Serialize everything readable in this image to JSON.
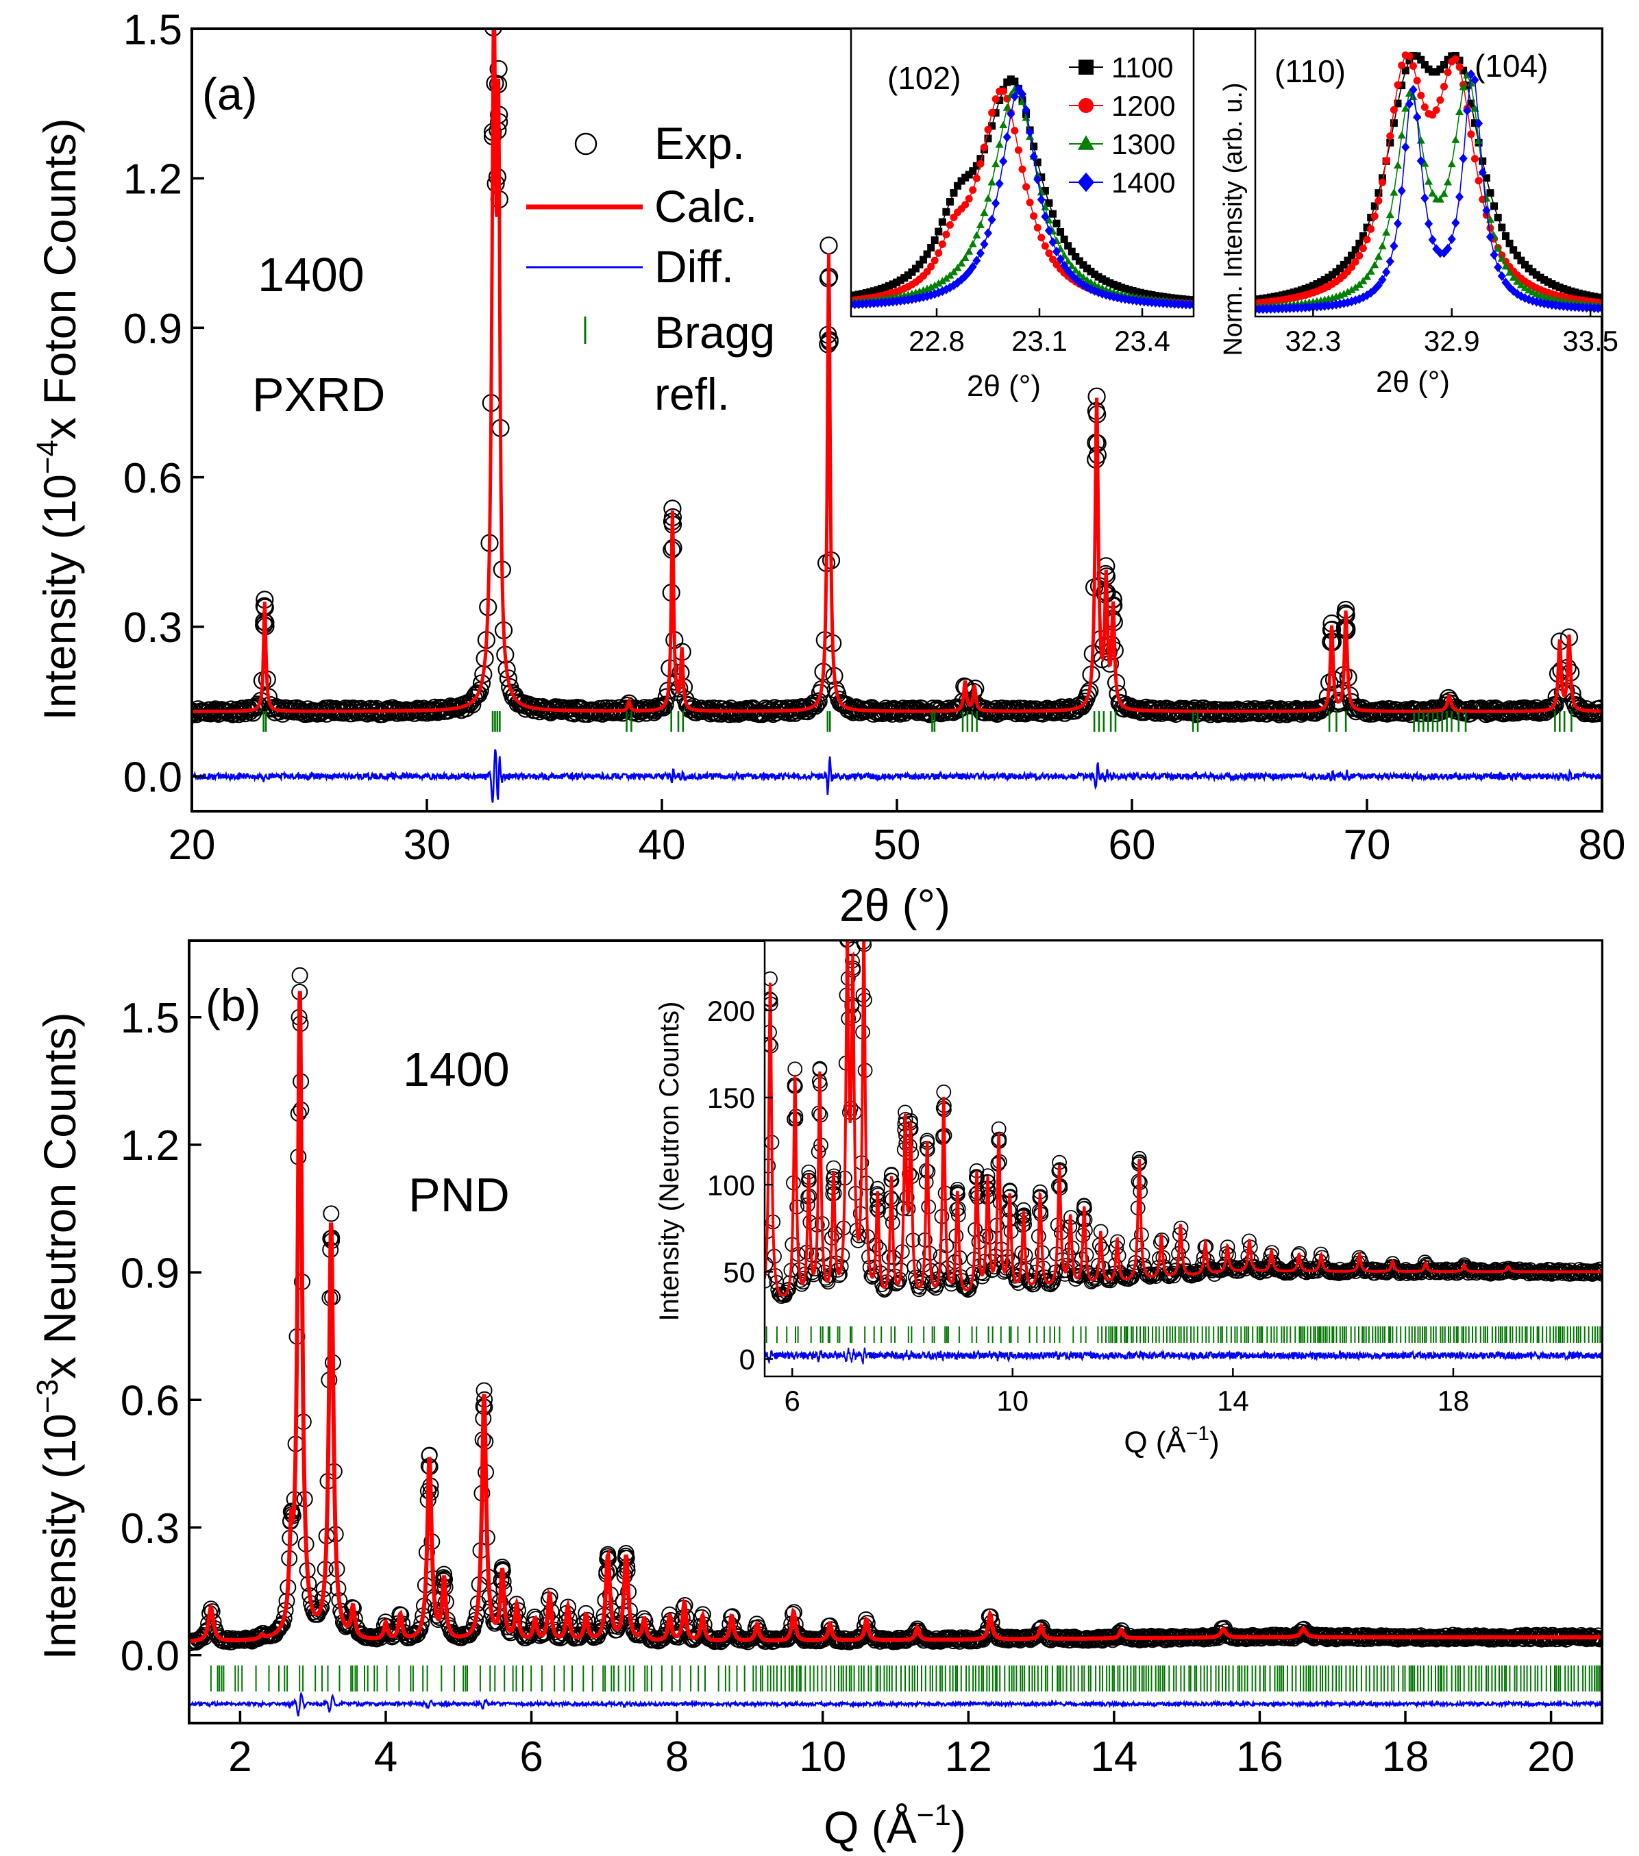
{
  "chart_data": [
    {
      "id": "a",
      "type": "scatter",
      "panel_label": "(a)",
      "sample_label": "1400",
      "method_label": "PXRD",
      "xlabel": "2θ (°)",
      "ylabel_parts": [
        "Intensity (10",
        "−4",
        "x Foton Counts)"
      ],
      "xlim": [
        20,
        80
      ],
      "ylim": [
        -0.07,
        1.5
      ],
      "xticks": [
        20,
        30,
        40,
        50,
        60,
        70,
        80
      ],
      "xtick_labels": [
        "20",
        "30",
        "40",
        "50",
        "60",
        "70",
        "80"
      ],
      "yticks": [
        0.0,
        0.3,
        0.6,
        0.9,
        1.2,
        1.5
      ],
      "ytick_labels": [
        "0.0",
        "0.3",
        "0.6",
        "0.9",
        "1.2",
        "1.5"
      ],
      "background": 0.13,
      "peaks": [
        [
          23.1,
          0.22,
          0.06
        ],
        [
          32.85,
          1.35,
          0.1
        ],
        [
          33.05,
          1.0,
          0.07
        ],
        [
          38.6,
          0.02,
          0.06
        ],
        [
          40.45,
          0.4,
          0.06
        ],
        [
          40.85,
          0.12,
          0.06
        ],
        [
          47.1,
          0.92,
          0.07
        ],
        [
          52.9,
          0.06,
          0.07
        ],
        [
          53.3,
          0.05,
          0.07
        ],
        [
          58.5,
          0.62,
          0.08
        ],
        [
          58.9,
          0.25,
          0.07
        ],
        [
          59.2,
          0.2,
          0.07
        ],
        [
          68.5,
          0.17,
          0.07
        ],
        [
          69.1,
          0.2,
          0.07
        ],
        [
          73.5,
          0.03,
          0.1
        ],
        [
          78.2,
          0.14,
          0.07
        ],
        [
          78.6,
          0.15,
          0.07
        ]
      ],
      "bragg_positions": [
        23.05,
        23.15,
        32.8,
        32.9,
        33.0,
        33.1,
        38.5,
        38.7,
        40.4,
        40.7,
        40.9,
        47.05,
        47.15,
        51.5,
        51.6,
        52.8,
        53.0,
        53.2,
        53.4,
        58.4,
        58.6,
        58.8,
        59.1,
        59.3,
        62.6,
        62.8,
        68.4,
        68.7,
        69.1,
        72.0,
        72.2,
        72.4,
        72.6,
        72.8,
        73.0,
        73.2,
        73.4,
        73.6,
        73.9,
        74.2,
        78.0,
        78.2,
        78.4,
        78.7
      ],
      "bragg_y": 0.11,
      "diff_offset": 0.0,
      "legend": [
        {
          "label": "Exp.",
          "marker": "open-circle",
          "color": "#000000"
        },
        {
          "label": "Calc.",
          "marker": "line",
          "color": "#ff0000"
        },
        {
          "label": "Diff.",
          "marker": "line",
          "color": "#0000ff"
        },
        {
          "label": "Bragg",
          "label2": "refl.",
          "marker": "tick",
          "color": "#007700"
        }
      ],
      "colors": {
        "exp": "#000000",
        "calc": "#ff0000",
        "diff": "#0000ff",
        "bragg": "#007700"
      }
    },
    {
      "id": "a_inset_102",
      "type": "line",
      "annotation": "(102)",
      "xlabel": "2θ (°)",
      "xlim": [
        22.55,
        23.55
      ],
      "ylim": [
        0,
        1.05
      ],
      "xticks": [
        22.8,
        23.1,
        23.4
      ],
      "xtick_labels": [
        "22.8",
        "23.1",
        "23.4"
      ],
      "series": [
        {
          "name": "1100",
          "marker": "square",
          "color": "#000000",
          "peaks": [
            [
              23.02,
              0.8,
              0.1
            ],
            [
              22.86,
              0.22,
              0.07
            ]
          ],
          "base": 0.03
        },
        {
          "name": "1200",
          "marker": "circle",
          "color": "#ff0000",
          "peaks": [
            [
              22.99,
              0.78,
              0.08
            ],
            [
              22.85,
              0.14,
              0.05
            ]
          ],
          "base": 0.03
        },
        {
          "name": "1300",
          "marker": "triangle",
          "color": "#008000",
          "peaks": [
            [
              23.03,
              0.8,
              0.08
            ]
          ],
          "base": 0.03
        },
        {
          "name": "1400",
          "marker": "diamond",
          "color": "#0000ff",
          "peaks": [
            [
              23.04,
              0.8,
              0.065
            ]
          ],
          "base": 0.03
        }
      ]
    },
    {
      "id": "a_inset_110_104",
      "type": "line",
      "annotations": [
        "(110)",
        "(104)"
      ],
      "xlabel": "2θ (°)",
      "ylabel": "Norm. Intensity (arb. u.)",
      "xlim": [
        32.05,
        33.55
      ],
      "ylim": [
        0,
        1.05
      ],
      "xticks": [
        32.3,
        32.9,
        33.5
      ],
      "xtick_labels": [
        "32.3",
        "32.9",
        "33.5"
      ],
      "series": [
        {
          "name": "1100",
          "marker": "square",
          "color": "#000000",
          "peaks": [
            [
              32.72,
              0.72,
              0.13
            ],
            [
              32.93,
              0.72,
              0.13
            ]
          ],
          "base": 0.02
        },
        {
          "name": "1200",
          "marker": "circle",
          "color": "#ff0000",
          "peaks": [
            [
              32.7,
              0.8,
              0.1
            ],
            [
              32.92,
              0.78,
              0.1
            ]
          ],
          "base": 0.02
        },
        {
          "name": "1300",
          "marker": "triangle",
          "color": "#008000",
          "peaks": [
            [
              32.72,
              0.73,
              0.075
            ],
            [
              32.97,
              0.8,
              0.075
            ]
          ],
          "base": 0.02
        },
        {
          "name": "1400",
          "marker": "diamond",
          "color": "#0000ff",
          "peaks": [
            [
              32.73,
              0.78,
              0.05
            ],
            [
              32.99,
              0.85,
              0.05
            ]
          ],
          "base": 0.02
        }
      ]
    },
    {
      "id": "b",
      "type": "scatter",
      "panel_label": "(b)",
      "sample_label": "1400",
      "method_label": "PND",
      "xlabel_parts": [
        "Q (Å",
        "−1",
        ")"
      ],
      "ylabel_parts": [
        "Intensity (10",
        "−3",
        "x Neutron Counts)"
      ],
      "xlim": [
        1.3,
        20.7
      ],
      "ylim": [
        -0.16,
        1.68
      ],
      "xticks": [
        2,
        4,
        6,
        8,
        10,
        12,
        14,
        16,
        18,
        20
      ],
      "xtick_labels": [
        "2",
        "4",
        "6",
        "8",
        "10",
        "12",
        "14",
        "16",
        "18",
        "20"
      ],
      "yticks": [
        0.0,
        0.3,
        0.6,
        0.9,
        1.2,
        1.5
      ],
      "ytick_labels": [
        "0.0",
        "0.3",
        "0.6",
        "0.9",
        "1.2",
        "1.5"
      ],
      "background": 0.03,
      "peaks": [
        [
          1.6,
          0.08,
          0.04
        ],
        [
          2.3,
          0.01,
          0.03
        ],
        [
          2.7,
          0.18,
          0.03
        ],
        [
          2.82,
          1.52,
          0.035
        ],
        [
          3.25,
          0.98,
          0.035
        ],
        [
          3.55,
          0.07,
          0.03
        ],
        [
          4.0,
          0.04,
          0.03
        ],
        [
          4.2,
          0.06,
          0.03
        ],
        [
          4.6,
          0.43,
          0.035
        ],
        [
          4.8,
          0.14,
          0.03
        ],
        [
          5.35,
          0.58,
          0.035
        ],
        [
          5.6,
          0.16,
          0.03
        ],
        [
          5.8,
          0.08,
          0.03
        ],
        [
          6.05,
          0.05,
          0.03
        ],
        [
          6.25,
          0.11,
          0.03
        ],
        [
          6.5,
          0.08,
          0.03
        ],
        [
          6.75,
          0.06,
          0.03
        ],
        [
          7.05,
          0.2,
          0.035
        ],
        [
          7.3,
          0.2,
          0.035
        ],
        [
          7.55,
          0.05,
          0.03
        ],
        [
          7.9,
          0.06,
          0.03
        ],
        [
          8.1,
          0.09,
          0.03
        ],
        [
          8.35,
          0.06,
          0.03
        ],
        [
          8.75,
          0.06,
          0.03
        ],
        [
          9.1,
          0.04,
          0.03
        ],
        [
          9.6,
          0.07,
          0.03
        ],
        [
          10.1,
          0.04,
          0.03
        ],
        [
          10.6,
          0.05,
          0.03
        ],
        [
          11.3,
          0.03,
          0.03
        ],
        [
          12.3,
          0.06,
          0.03
        ],
        [
          13.0,
          0.03,
          0.03
        ],
        [
          14.1,
          0.02,
          0.03
        ],
        [
          15.5,
          0.02,
          0.04
        ],
        [
          16.6,
          0.02,
          0.04
        ]
      ],
      "bragg_y": -0.055,
      "diff_offset": -0.115,
      "colors": {
        "exp": "#000000",
        "calc": "#ff0000",
        "diff": "#0000ff",
        "bragg": "#007700"
      }
    },
    {
      "id": "b_inset",
      "type": "scatter",
      "xlabel_parts": [
        "Q (Å",
        "−1",
        ")"
      ],
      "ylabel": "Intensity (Neutron Counts)",
      "xlim": [
        5.5,
        20.7
      ],
      "ylim": [
        -10,
        240
      ],
      "xticks": [
        6,
        10,
        14,
        18
      ],
      "xtick_labels": [
        "6",
        "10",
        "14",
        "18"
      ],
      "yticks": [
        0,
        50,
        100,
        150,
        200
      ],
      "ytick_labels": [
        "0",
        "50",
        "100",
        "150",
        "200"
      ],
      "peaks": [
        [
          5.6,
          185,
          0.03
        ],
        [
          6.05,
          130,
          0.03
        ],
        [
          6.3,
          70,
          0.03
        ],
        [
          6.5,
          130,
          0.03
        ],
        [
          6.75,
          70,
          0.03
        ],
        [
          7.0,
          200,
          0.03
        ],
        [
          7.1,
          180,
          0.03
        ],
        [
          7.3,
          210,
          0.03
        ],
        [
          7.55,
          60,
          0.03
        ],
        [
          7.8,
          70,
          0.03
        ],
        [
          8.05,
          100,
          0.03
        ],
        [
          8.15,
          95,
          0.03
        ],
        [
          8.45,
          90,
          0.03
        ],
        [
          8.75,
          115,
          0.03
        ],
        [
          9.0,
          60,
          0.03
        ],
        [
          9.35,
          70,
          0.03
        ],
        [
          9.55,
          65,
          0.03
        ],
        [
          9.75,
          90,
          0.03
        ],
        [
          9.95,
          55,
          0.03
        ],
        [
          10.2,
          45,
          0.03
        ],
        [
          10.5,
          55,
          0.03
        ],
        [
          10.85,
          70,
          0.03
        ],
        [
          11.05,
          40,
          0.03
        ],
        [
          11.3,
          45,
          0.03
        ],
        [
          11.6,
          30,
          0.03
        ],
        [
          11.9,
          25,
          0.03
        ],
        [
          12.3,
          70,
          0.03
        ],
        [
          12.7,
          25,
          0.03
        ],
        [
          13.05,
          30,
          0.03
        ],
        [
          13.5,
          18,
          0.03
        ],
        [
          13.9,
          15,
          0.03
        ],
        [
          14.3,
          18,
          0.03
        ],
        [
          14.7,
          12,
          0.03
        ],
        [
          15.2,
          10,
          0.03
        ],
        [
          15.6,
          10,
          0.03
        ],
        [
          16.3,
          10,
          0.03
        ],
        [
          16.9,
          6,
          0.03
        ],
        [
          17.5,
          5,
          0.03
        ],
        [
          18.2,
          4,
          0.03
        ],
        [
          19.0,
          3,
          0.03
        ]
      ],
      "bragg_y": 14,
      "diff_offset": 2,
      "colors": {
        "exp": "#000000",
        "calc": "#ff0000",
        "diff": "#0000ff",
        "bragg": "#007700"
      }
    }
  ]
}
